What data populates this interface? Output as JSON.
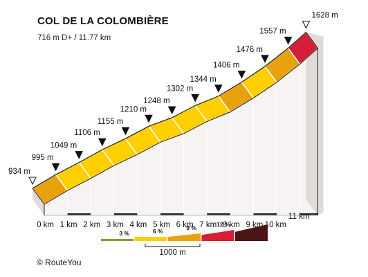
{
  "title": "COL DE LA COLOMBIÈRE",
  "subtitle": "716 m D+ / 11.77 km",
  "copyright": "© RouteYou",
  "chart_data": {
    "type": "area",
    "title": "COL DE LA COLOMBIÈRE",
    "subtitle": "716 m D+ / 11.77 km",
    "total_distance_km": 11.77,
    "elevation_gain_m": 716,
    "points": [
      {
        "km": 0,
        "elevation": 934,
        "label": "934 m",
        "km_label": "0 km"
      },
      {
        "km": 1,
        "elevation": 995,
        "label": "995 m",
        "km_label": "1 km"
      },
      {
        "km": 2,
        "elevation": 1049,
        "label": "1049 m",
        "km_label": "2 km"
      },
      {
        "km": 3,
        "elevation": 1106,
        "label": "1106 m",
        "km_label": "3 km"
      },
      {
        "km": 4,
        "elevation": 1155,
        "label": "1155 m",
        "km_label": "4 km"
      },
      {
        "km": 5,
        "elevation": 1210,
        "label": "1210 m",
        "km_label": "5 km"
      },
      {
        "km": 6,
        "elevation": 1248,
        "label": "1248 m",
        "km_label": "6 km"
      },
      {
        "km": 7,
        "elevation": 1302,
        "label": "1302 m",
        "km_label": "7 km"
      },
      {
        "km": 8,
        "elevation": 1344,
        "label": "1344 m",
        "km_label": "8 km"
      },
      {
        "km": 9,
        "elevation": 1406,
        "label": "1406 m",
        "km_label": "9 km"
      },
      {
        "km": 10,
        "elevation": 1476,
        "label": "1476 m",
        "km_label": "10 km"
      },
      {
        "km": 11,
        "elevation": 1557,
        "label": "1557 m",
        "km_label": "11 km"
      },
      {
        "km": 11.77,
        "elevation": 1628,
        "label": "1628 m",
        "km_label": ""
      }
    ],
    "segment_colors": [
      "#e8a20e",
      "#ffcf00",
      "#ffcf00",
      "#ffcf00",
      "#ffcf00",
      "#ffcf00",
      "#ffcf00",
      "#ffcf00",
      "#e8a20e",
      "#ffcf00",
      "#e8a20e",
      "#d51e35"
    ],
    "legend": {
      "items": [
        {
          "label": "3 %",
          "color": "#8a9a2e"
        },
        {
          "label": "6 %",
          "color": "#ffcf00"
        },
        {
          "label": "9 %",
          "color": "#e8a20e"
        },
        {
          "label": "12 %",
          "color": "#d51e35"
        },
        {
          "label": "",
          "color": "#4a1516"
        }
      ],
      "scale_label": "1000 m"
    },
    "colors": {
      "side": "#e0dbd8",
      "wall": "#f6f3f2",
      "ground": "#2a2a2a",
      "outline": "#ffffff"
    }
  }
}
